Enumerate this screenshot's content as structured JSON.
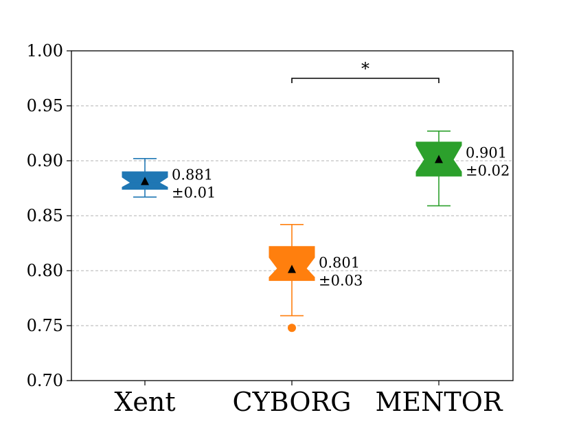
{
  "chart_data": {
    "type": "box",
    "categories": [
      "Xent",
      "CYBORG",
      "MENTOR"
    ],
    "ylim": [
      0.7,
      1.0
    ],
    "yticks": [
      "0.70",
      "0.75",
      "0.80",
      "0.85",
      "0.90",
      "0.95",
      "1.00"
    ],
    "grid": "horizontal dashed",
    "series": [
      {
        "category": "Xent",
        "color": "#1f77b4",
        "whisker_low": 0.867,
        "q1": 0.874,
        "median": 0.88,
        "q3": 0.89,
        "whisker_high": 0.902,
        "notch_low": 0.876,
        "notch_high": 0.885,
        "mean": 0.881,
        "outliers": [],
        "annotation": [
          "0.881",
          "±0.01"
        ]
      },
      {
        "category": "CYBORG",
        "color": "#ff7f0e",
        "whisker_low": 0.759,
        "q1": 0.791,
        "median": 0.802,
        "q3": 0.822,
        "whisker_high": 0.842,
        "notch_low": 0.794,
        "notch_high": 0.812,
        "mean": 0.801,
        "outliers": [
          0.748
        ],
        "annotation": [
          "0.801",
          "±0.03"
        ]
      },
      {
        "category": "MENTOR",
        "color": "#2ca02c",
        "whisker_low": 0.859,
        "q1": 0.886,
        "median": 0.901,
        "q3": 0.917,
        "whisker_high": 0.927,
        "notch_low": 0.89,
        "notch_high": 0.914,
        "mean": 0.901,
        "outliers": [],
        "annotation": [
          "0.901",
          "±0.02"
        ]
      }
    ],
    "significance": [
      {
        "from": "CYBORG",
        "to": "MENTOR",
        "y": 0.975,
        "label": "*"
      }
    ]
  }
}
